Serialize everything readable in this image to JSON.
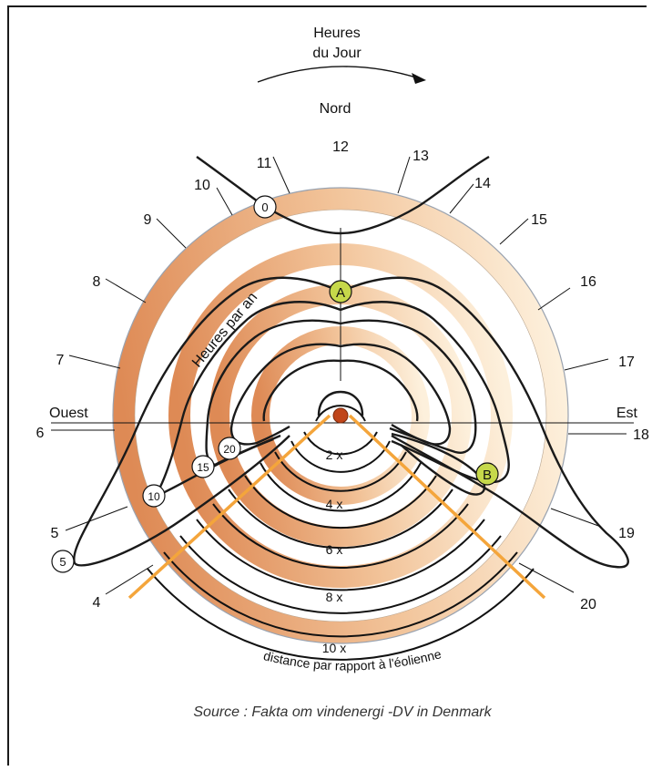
{
  "header": {
    "line1": "Heures",
    "line2": "du Jour"
  },
  "north_label": "Nord",
  "west_label": "Ouest",
  "east_label": "Est",
  "hour_ticks": [
    "4",
    "5",
    "6",
    "7",
    "8",
    "9",
    "10",
    "11",
    "12",
    "13",
    "14",
    "15",
    "16",
    "17",
    "18",
    "19",
    "20"
  ],
  "curve_label": "Heures par an",
  "markers": {
    "a": "A",
    "b": "B"
  },
  "contour_labels": [
    "0",
    "20",
    "15",
    "10",
    "5"
  ],
  "distance_labels": [
    "2 x",
    "4 x",
    "6 x",
    "8 x",
    "10 x"
  ],
  "distance_caption": "distance par rapport à l'éolienne",
  "source": "Source : Fakta om vindenergi -DV in Denmark",
  "colors": {
    "ring_dark": "#de8a55",
    "ring_light": "#fdf0dc",
    "wedge": "#f4a53b",
    "marker": "#c6d84a",
    "turbine": "#c0451a"
  }
}
